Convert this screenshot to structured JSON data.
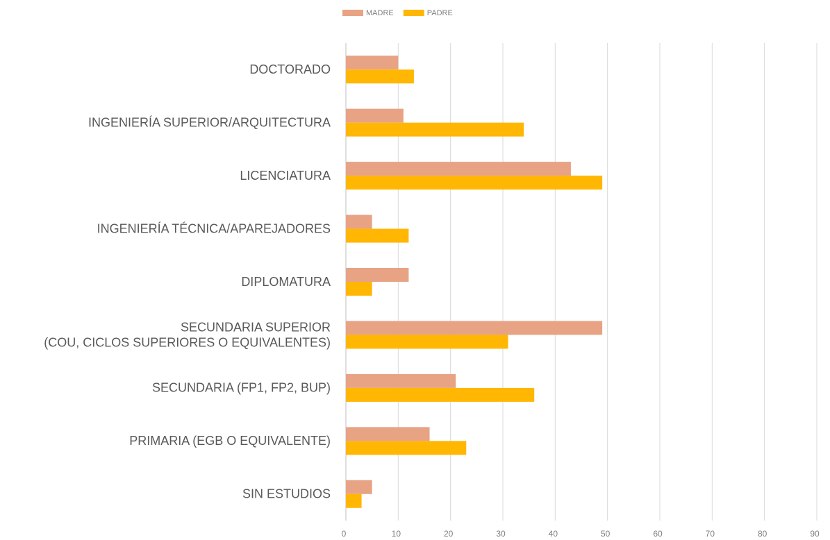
{
  "chart_data": {
    "type": "barh",
    "categories": [
      "DOCTORADO",
      "INGENIERÍA SUPERIOR/ARQUITECTURA",
      "LICENCIATURA",
      "INGENIERÍA TÉCNICA/APAREJADORES",
      "DIPLOMATURA",
      "SECUNDARIA SUPERIOR\n(COU, CICLOS SUPERIORES O EQUIVALENTES)",
      "SECUNDARIA (FP1, FP2, BUP)",
      "PRIMARIA (EGB O EQUIVALENTE)",
      "SIN ESTUDIOS"
    ],
    "series": [
      {
        "name": "MADRE",
        "color": "#e8a385",
        "values": [
          10,
          11,
          43,
          5,
          12,
          49,
          21,
          16,
          5
        ]
      },
      {
        "name": "PADRE",
        "color": "#ffb703",
        "values": [
          13,
          34,
          49,
          12,
          5,
          31,
          36,
          23,
          3
        ]
      }
    ],
    "xlim": [
      0,
      90
    ],
    "xticks": [
      0,
      10,
      20,
      30,
      40,
      50,
      60,
      70,
      80,
      90
    ],
    "grid": true,
    "legend": "top"
  }
}
